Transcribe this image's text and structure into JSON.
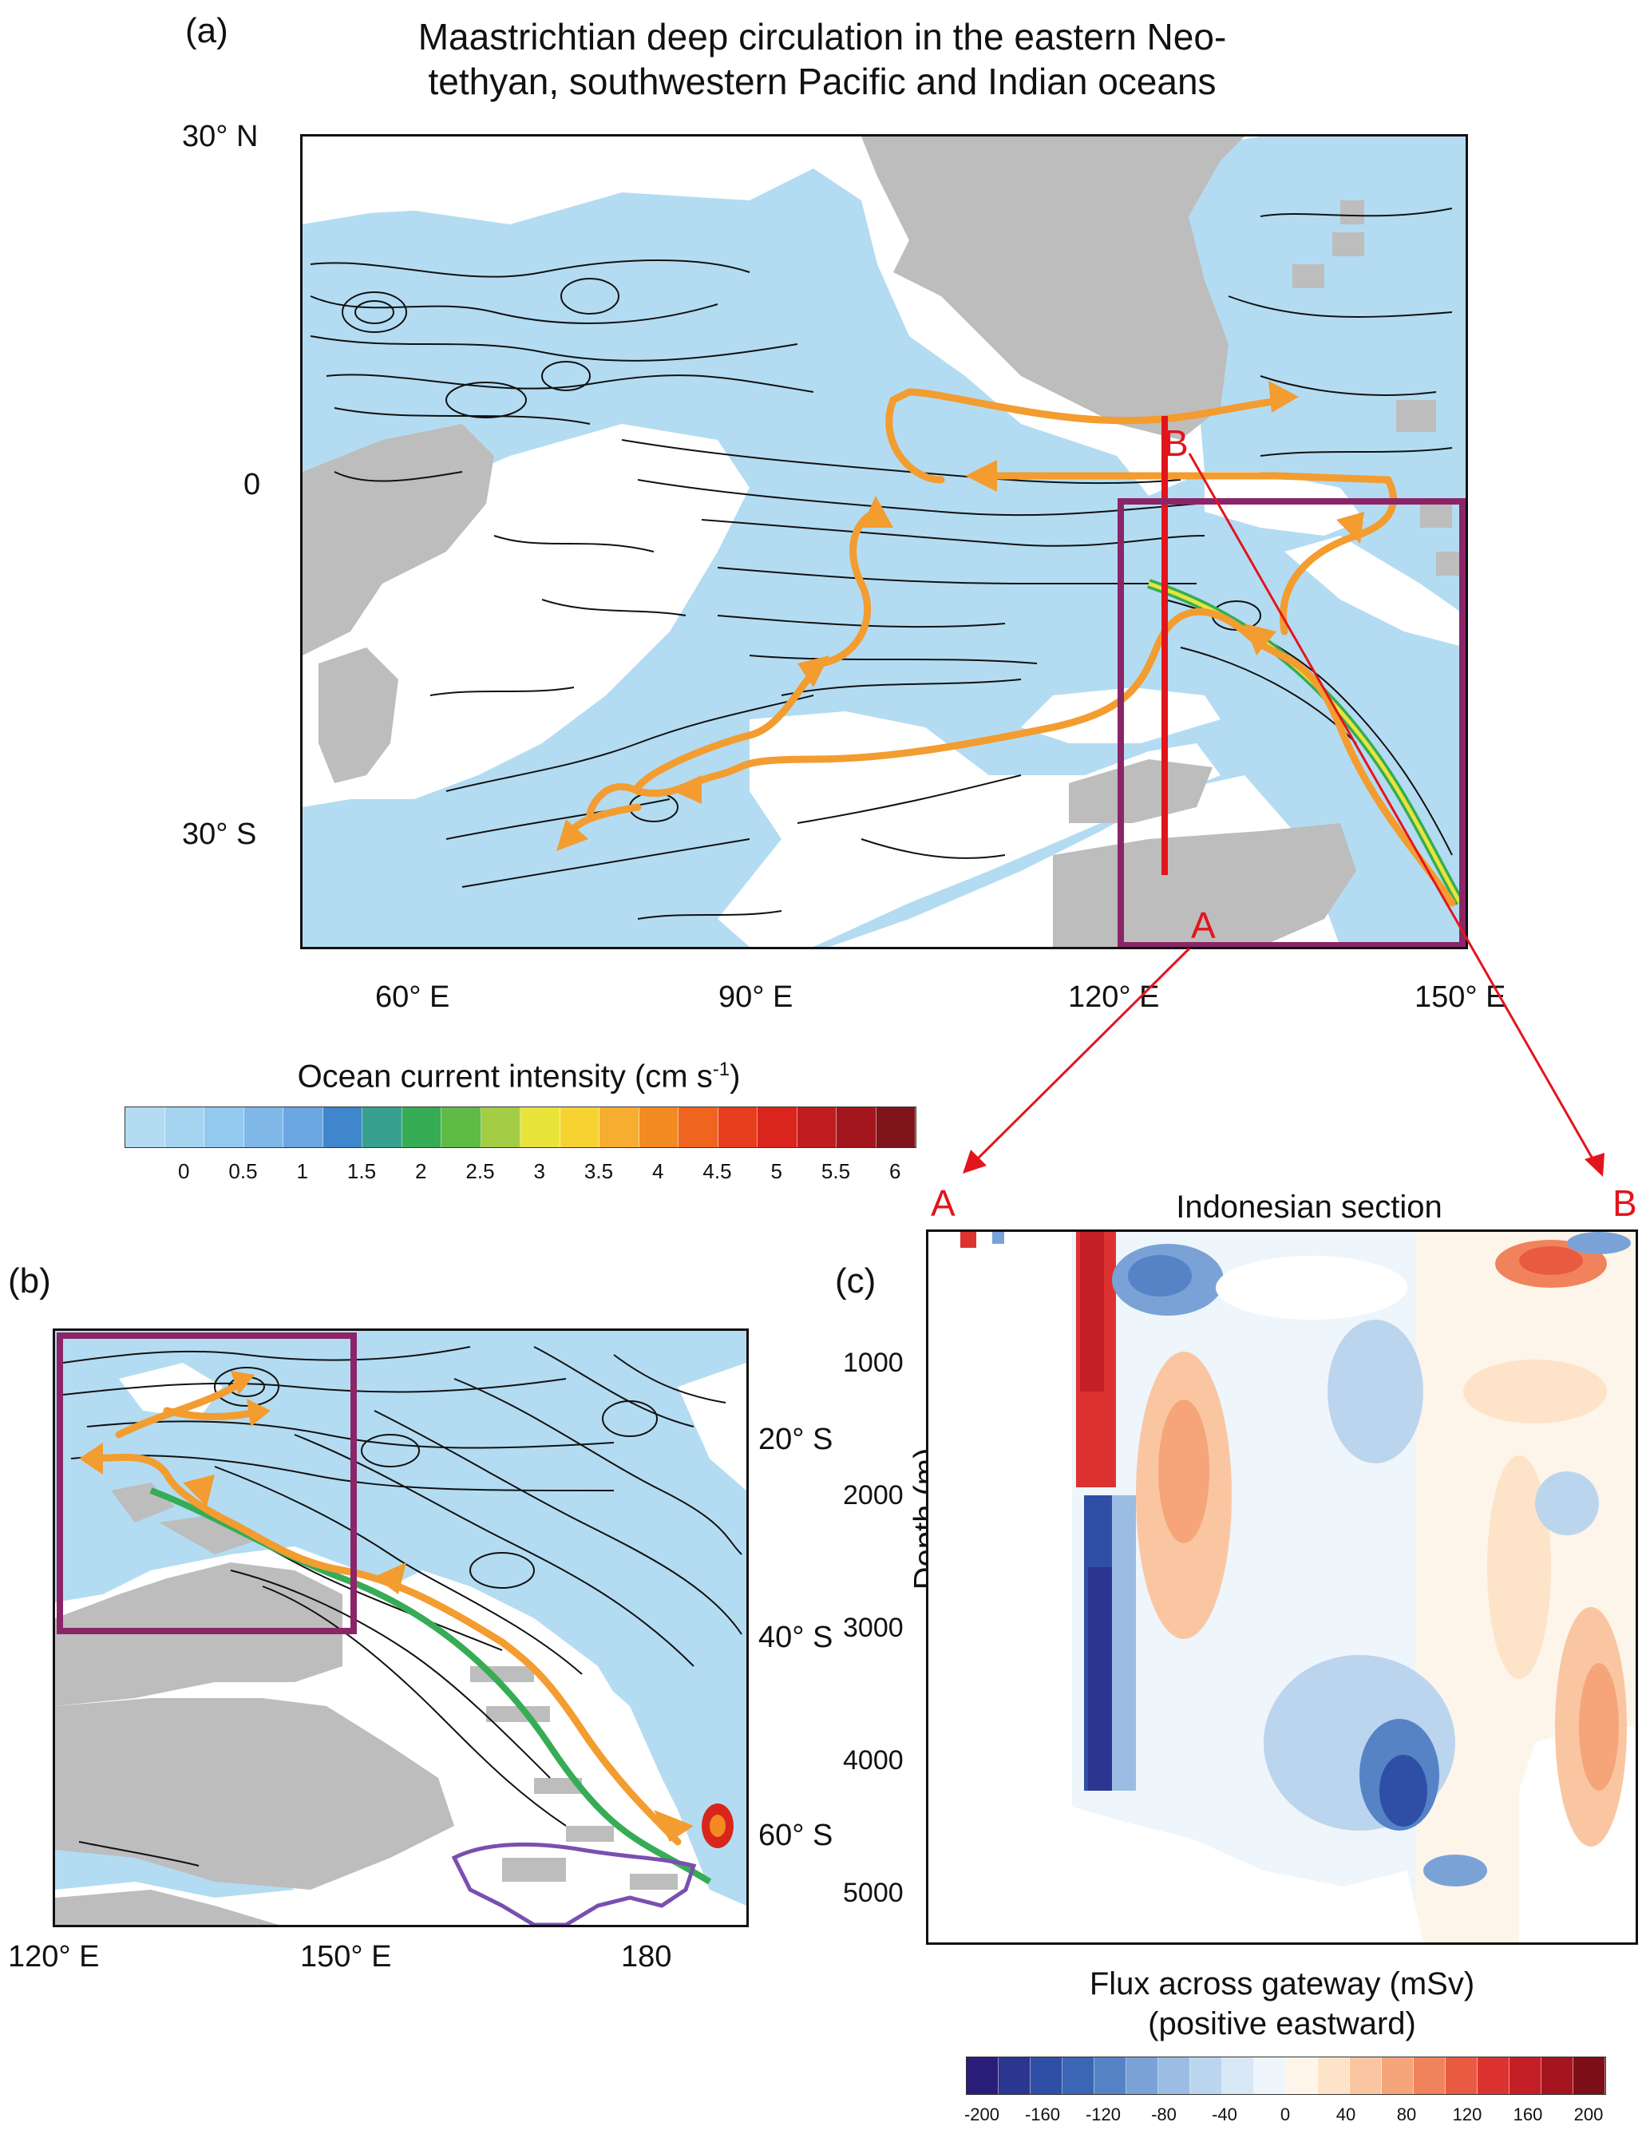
{
  "panel_a": {
    "label": "(a)",
    "title_line1": "Maastrichtian deep circulation in the eastern Neo-",
    "title_line2": "tethyan, southwestern Pacific and Indian oceans",
    "lat_ticks": [
      "30° N",
      "0",
      "30° S"
    ],
    "lon_ticks": [
      "60° E",
      "90° E",
      "120° E",
      "150° E"
    ],
    "section_start": "A",
    "section_end": "B"
  },
  "colorbar_a": {
    "title": "Ocean current intensity (cm s",
    "title_sup": "-1",
    "title_end": ")",
    "ticks": [
      "0",
      "0.5",
      "1",
      "1.5",
      "2",
      "2.5",
      "3",
      "3.5",
      "4",
      "4.5",
      "5",
      "5.5",
      "6"
    ],
    "colors": [
      "#b3dcf2",
      "#a5d4f0",
      "#93c9ee",
      "#7fb8e8",
      "#6aa6e1",
      "#3f86cc",
      "#38a08f",
      "#36ac55",
      "#5fbb45",
      "#a5cc45",
      "#e8e43c",
      "#f7d331",
      "#f6ad30",
      "#f48a22",
      "#ef6520",
      "#e63e1d",
      "#d9251b",
      "#c11c1f",
      "#a4161d",
      "#7f141a"
    ]
  },
  "panel_b": {
    "label": "(b)",
    "lat_ticks": [
      "20° S",
      "40° S",
      "60° S"
    ],
    "lon_ticks": [
      "120° E",
      "150° E",
      "180"
    ]
  },
  "panel_c": {
    "label": "(c)",
    "title": "Indonesian section",
    "left_end": "A",
    "right_end": "B",
    "ylabel": "Depth (m)",
    "yticks": [
      "1000",
      "2000",
      "3000",
      "4000",
      "5000"
    ],
    "xlabel_line1": "Flux across gateway (mSv)",
    "xlabel_line2": "(positive eastward)"
  },
  "colorbar_c": {
    "ticks": [
      "-200",
      "-160",
      "-120",
      "-80",
      "-40",
      "0",
      "40",
      "80",
      "120",
      "160",
      "200"
    ],
    "colors": [
      "#2a1d7a",
      "#2b3690",
      "#2f4fa6",
      "#3b66b6",
      "#5683c6",
      "#7aa2d6",
      "#9bbde3",
      "#bcd5ee",
      "#d7e7f5",
      "#eef5fb",
      "#fdf5ea",
      "#fde3c8",
      "#fac6a2",
      "#f6a57b",
      "#f0835c",
      "#e85a41",
      "#dd3330",
      "#c41f27",
      "#a5141f",
      "#7c0f18"
    ]
  }
}
